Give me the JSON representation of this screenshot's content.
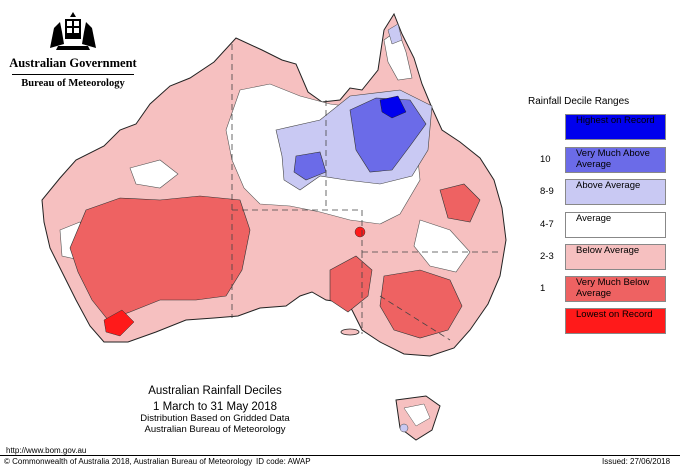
{
  "header": {
    "government": "Australian Government",
    "bureau": "Bureau of Meteorology"
  },
  "legend": {
    "title": "Rainfall Decile Ranges",
    "items": [
      {
        "code": "",
        "label": "Highest on Record",
        "color": "#0000ee"
      },
      {
        "code": "10",
        "label": "Very Much Above Average",
        "color": "#6b6be8"
      },
      {
        "code": "8-9",
        "label": "Above Average",
        "color": "#c9c9f3"
      },
      {
        "code": "4-7",
        "label": "Average",
        "color": "#ffffff"
      },
      {
        "code": "2-3",
        "label": "Below Average",
        "color": "#f6c0c0"
      },
      {
        "code": "1",
        "label": "Very Much Below Average",
        "color": "#ee6262"
      },
      {
        "code": "",
        "label": "Lowest on Record",
        "color": "#ff1a1a"
      }
    ]
  },
  "caption": {
    "title": "Australian Rainfall Deciles",
    "dates": "1 March to 31 May 2018",
    "line1": "Distribution Based on Gridded Data",
    "line2": "Australian Bureau of Meteorology"
  },
  "footer": {
    "url": "http://www.bom.gov.au",
    "copyright": "© Commonwealth of Australia 2018, Australian Bureau of Meteorology",
    "id_code": "ID code: AWAP",
    "issued": "Issued: 27/06/2018"
  }
}
